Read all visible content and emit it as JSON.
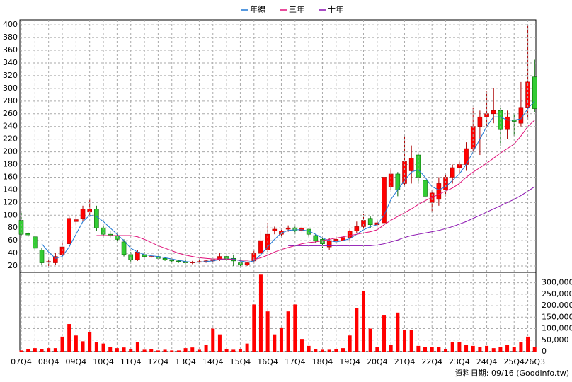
{
  "chart_data": [
    {
      "type": "candlestick",
      "open": [
        92,
        71,
        66,
        45,
        26,
        25,
        38,
        55,
        90,
        95,
        105,
        110,
        80,
        70,
        68,
        58,
        38,
        30,
        38,
        35,
        35,
        32,
        30,
        28,
        27,
        25,
        26,
        27,
        28,
        30,
        35,
        32,
        25,
        22,
        28,
        40,
        45,
        75,
        70,
        78,
        80,
        75,
        78,
        68,
        62,
        50,
        60,
        60,
        65,
        75,
        82,
        95,
        85,
        88,
        145,
        165,
        150,
        170,
        195,
        155,
        120,
        125,
        140,
        160,
        175,
        180,
        205,
        240,
        255,
        260,
        265,
        235,
        250,
        245,
        270,
        318
      ],
      "high": [
        105,
        73,
        68,
        48,
        30,
        40,
        58,
        100,
        100,
        115,
        125,
        115,
        85,
        75,
        72,
        62,
        42,
        45,
        42,
        38,
        36,
        34,
        32,
        30,
        29,
        28,
        29,
        30,
        32,
        40,
        36,
        38,
        27,
        27,
        45,
        75,
        88,
        82,
        80,
        84,
        82,
        88,
        80,
        70,
        65,
        64,
        66,
        70,
        80,
        90,
        102,
        98,
        92,
        165,
        175,
        168,
        225,
        210,
        198,
        160,
        140,
        160,
        165,
        180,
        185,
        215,
        270,
        265,
        295,
        300,
        270,
        265,
        260,
        310,
        400,
        345
      ],
      "low": [
        65,
        66,
        44,
        22,
        20,
        22,
        36,
        50,
        85,
        90,
        98,
        75,
        68,
        65,
        60,
        35,
        27,
        28,
        33,
        33,
        30,
        28,
        26,
        25,
        23,
        23,
        24,
        25,
        26,
        28,
        28,
        20,
        18,
        20,
        25,
        38,
        42,
        70,
        66,
        74,
        70,
        72,
        66,
        56,
        48,
        45,
        55,
        56,
        60,
        72,
        78,
        80,
        82,
        85,
        140,
        130,
        145,
        150,
        150,
        115,
        105,
        115,
        130,
        150,
        165,
        170,
        200,
        195,
        240,
        245,
        210,
        220,
        225,
        240,
        250,
        262
      ],
      "close": [
        70,
        69,
        48,
        25,
        27,
        35,
        50,
        95,
        93,
        110,
        110,
        80,
        70,
        68,
        62,
        38,
        30,
        42,
        35,
        35,
        32,
        30,
        28,
        27,
        25,
        26,
        27,
        28,
        30,
        35,
        30,
        28,
        22,
        25,
        40,
        60,
        70,
        78,
        75,
        80,
        75,
        80,
        70,
        60,
        55,
        60,
        62,
        65,
        75,
        82,
        92,
        85,
        88,
        160,
        165,
        140,
        185,
        190,
        160,
        130,
        135,
        150,
        160,
        175,
        180,
        205,
        240,
        255,
        260,
        265,
        235,
        255,
        248,
        270,
        310,
        268
      ],
      "up_color": "#ff0000",
      "down_color": "#33cc33",
      "series": [
        {
          "name": "年線",
          "color": "#1f77d4",
          "values": [
            null,
            null,
            null,
            55,
            42,
            32,
            35,
            50,
            70,
            90,
            100,
            98,
            90,
            80,
            70,
            60,
            48,
            42,
            38,
            36,
            35,
            33,
            31,
            29,
            27,
            26,
            26,
            27,
            28,
            30,
            31,
            31,
            28,
            26,
            28,
            38,
            50,
            62,
            72,
            76,
            77,
            77,
            75,
            70,
            64,
            60,
            58,
            60,
            63,
            70,
            77,
            82,
            85,
            100,
            125,
            140,
            155,
            168,
            172,
            160,
            145,
            140,
            145,
            155,
            165,
            180,
            200,
            220,
            240,
            255,
            255,
            250,
            250,
            252,
            268,
            280
          ]
        },
        {
          "name": "三年",
          "color": "#e0107a",
          "values": [
            null,
            null,
            null,
            null,
            null,
            null,
            null,
            null,
            null,
            null,
            null,
            68,
            68,
            68,
            68,
            68,
            68,
            66,
            62,
            57,
            52,
            48,
            44,
            40,
            37,
            35,
            33,
            32,
            31,
            31,
            31,
            30,
            29,
            29,
            30,
            33,
            37,
            42,
            46,
            49,
            52,
            55,
            57,
            58,
            60,
            62,
            64,
            66,
            68,
            70,
            72,
            74,
            77,
            85,
            92,
            98,
            104,
            110,
            117,
            123,
            128,
            133,
            138,
            143,
            150,
            160,
            168,
            175,
            182,
            190,
            198,
            205,
            212,
            225,
            240,
            250
          ]
        },
        {
          "name": "十年",
          "color": "#8a10b0",
          "values": [
            null,
            null,
            null,
            null,
            null,
            null,
            null,
            null,
            null,
            null,
            null,
            null,
            null,
            null,
            null,
            null,
            null,
            null,
            null,
            null,
            null,
            null,
            null,
            null,
            null,
            null,
            null,
            null,
            null,
            null,
            null,
            null,
            null,
            null,
            null,
            null,
            null,
            null,
            null,
            52,
            52,
            52,
            52,
            52,
            52,
            52,
            52,
            52,
            52,
            52,
            52,
            52,
            53,
            55,
            58,
            61,
            65,
            68,
            70,
            72,
            74,
            76,
            79,
            82,
            86,
            90,
            95,
            100,
            105,
            110,
            115,
            120,
            125,
            131,
            138,
            145
          ]
        }
      ],
      "ylim": [
        10,
        408
      ],
      "yticks": [
        20,
        40,
        60,
        80,
        100,
        120,
        140,
        160,
        180,
        200,
        220,
        240,
        260,
        280,
        300,
        320,
        340,
        360,
        380,
        400
      ],
      "grid": true
    },
    {
      "type": "bar",
      "categories": [
        "07Q4",
        null,
        null,
        null,
        "08Q4",
        null,
        null,
        null,
        "09Q4",
        null,
        null,
        null,
        "10Q4",
        null,
        null,
        null,
        "11Q4",
        null,
        null,
        null,
        "12Q4",
        null,
        null,
        null,
        "13Q4",
        null,
        null,
        null,
        "14Q4",
        null,
        null,
        null,
        "15Q4",
        null,
        null,
        null,
        "16Q4",
        null,
        null,
        null,
        "17Q4",
        null,
        null,
        null,
        "18Q4",
        null,
        null,
        null,
        "19Q4",
        null,
        null,
        null,
        "20Q4",
        null,
        null,
        null,
        "21Q4",
        null,
        null,
        null,
        "22Q4",
        null,
        null,
        null,
        "23Q4",
        null,
        null,
        null,
        "24Q4",
        null,
        null,
        null,
        "25Q4",
        null,
        null,
        "26Q3"
      ],
      "values": [
        5000,
        10000,
        15000,
        10000,
        15000,
        15000,
        65000,
        120000,
        70000,
        45000,
        85000,
        40000,
        35000,
        20000,
        15000,
        18000,
        10000,
        40000,
        8000,
        10000,
        5000,
        8000,
        5000,
        5000,
        15000,
        18000,
        8000,
        30000,
        100000,
        75000,
        10000,
        8000,
        10000,
        35000,
        205000,
        335000,
        175000,
        75000,
        105000,
        175000,
        205000,
        55000,
        25000,
        10000,
        8000,
        8000,
        10000,
        15000,
        70000,
        190000,
        265000,
        100000,
        20000,
        160000,
        30000,
        170000,
        95000,
        95000,
        25000,
        20000,
        20000,
        20000,
        10000,
        40000,
        40000,
        30000,
        25000,
        20000,
        25000,
        15000,
        20000,
        30000,
        20000,
        40000,
        65000,
        20000
      ],
      "color": "#ff0000",
      "ylim": [
        0,
        345000
      ],
      "yticks": [
        0,
        {
          "value": 50000,
          "label": "50,000"
        },
        {
          "value": 100000,
          "label": "100,000"
        },
        {
          "value": 150000,
          "label": "150,000"
        },
        {
          "value": 200000,
          "label": "200,000"
        },
        {
          "value": 250000,
          "label": "250,000"
        },
        {
          "value": 300000,
          "label": "300,000"
        }
      ],
      "grid": true
    }
  ],
  "footer": "資料日期: 09/16 (Goodinfo.tw)"
}
